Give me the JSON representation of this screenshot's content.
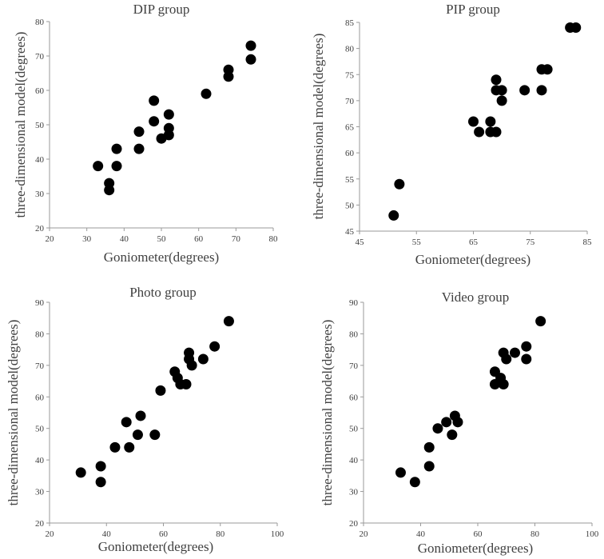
{
  "figure": {
    "layout": "2x2 grid of scatter plots"
  },
  "chart_data": [
    {
      "type": "scatter",
      "title": "DIP group",
      "xlabel": "Goniometer(degrees)",
      "ylabel": "three-dimensional model(degrees)",
      "xlim": [
        20,
        80
      ],
      "ylim": [
        20,
        80
      ],
      "xticks": [
        20,
        30,
        40,
        50,
        60,
        70,
        80
      ],
      "yticks": [
        20,
        30,
        40,
        50,
        60,
        70,
        80
      ],
      "marker_color": "#000000",
      "points": [
        [
          33,
          38
        ],
        [
          36,
          33
        ],
        [
          36,
          31
        ],
        [
          38,
          43
        ],
        [
          38,
          38
        ],
        [
          44,
          48
        ],
        [
          44,
          43
        ],
        [
          48,
          57
        ],
        [
          48,
          51
        ],
        [
          50,
          46
        ],
        [
          52,
          53
        ],
        [
          52,
          49
        ],
        [
          52,
          47
        ],
        [
          62,
          59
        ],
        [
          68,
          66
        ],
        [
          68,
          64
        ],
        [
          74,
          73
        ],
        [
          74,
          69
        ]
      ]
    },
    {
      "type": "scatter",
      "title": "PIP group",
      "xlabel": "Goniometer(degrees)",
      "ylabel": "three-dimensional model(degrees)",
      "xlim": [
        45,
        85
      ],
      "ylim": [
        45,
        85
      ],
      "xticks": [
        45,
        55,
        65,
        75,
        85
      ],
      "yticks": [
        45,
        50,
        55,
        60,
        65,
        70,
        75,
        80,
        85
      ],
      "marker_color": "#000000",
      "points": [
        [
          51,
          48
        ],
        [
          52,
          54
        ],
        [
          65,
          66
        ],
        [
          66,
          64
        ],
        [
          68,
          66
        ],
        [
          68,
          64
        ],
        [
          69,
          64
        ],
        [
          69,
          74
        ],
        [
          69,
          72
        ],
        [
          70,
          72
        ],
        [
          70,
          70
        ],
        [
          74,
          72
        ],
        [
          77,
          76
        ],
        [
          78,
          76
        ],
        [
          77,
          72
        ],
        [
          82,
          84
        ],
        [
          83,
          84
        ]
      ]
    },
    {
      "type": "scatter",
      "title": "Photo group",
      "xlabel": "Goniometer(degrees)",
      "ylabel": "three-dimensional model(degrees)",
      "xlim": [
        20,
        100
      ],
      "ylim": [
        20,
        90
      ],
      "xticks": [
        20,
        40,
        60,
        80,
        100
      ],
      "yticks": [
        20,
        30,
        40,
        50,
        60,
        70,
        80,
        90
      ],
      "marker_color": "#000000",
      "points": [
        [
          31,
          36
        ],
        [
          38,
          38
        ],
        [
          38,
          33
        ],
        [
          43,
          44
        ],
        [
          47,
          52
        ],
        [
          48,
          44
        ],
        [
          51,
          48
        ],
        [
          52,
          54
        ],
        [
          57,
          48
        ],
        [
          59,
          62
        ],
        [
          64,
          68
        ],
        [
          65,
          66
        ],
        [
          66,
          64
        ],
        [
          68,
          64
        ],
        [
          69,
          74
        ],
        [
          69,
          72
        ],
        [
          70,
          70
        ],
        [
          74,
          72
        ],
        [
          78,
          76
        ],
        [
          83,
          84
        ]
      ]
    },
    {
      "type": "scatter",
      "title": "Video group",
      "xlabel": "Goniometer(degrees)",
      "ylabel": "three-dimensional model(degrees)",
      "xlim": [
        20,
        100
      ],
      "ylim": [
        20,
        90
      ],
      "xticks": [
        20,
        40,
        60,
        80,
        100
      ],
      "yticks": [
        20,
        30,
        40,
        50,
        60,
        70,
        80,
        90
      ],
      "marker_color": "#000000",
      "points": [
        [
          33,
          36
        ],
        [
          38,
          33
        ],
        [
          43,
          44
        ],
        [
          43,
          38
        ],
        [
          46,
          50
        ],
        [
          49,
          52
        ],
        [
          51,
          48
        ],
        [
          52,
          54
        ],
        [
          53,
          52
        ],
        [
          66,
          68
        ],
        [
          66,
          64
        ],
        [
          68,
          66
        ],
        [
          69,
          74
        ],
        [
          69,
          64
        ],
        [
          70,
          72
        ],
        [
          73,
          74
        ],
        [
          77,
          76
        ],
        [
          77,
          72
        ],
        [
          82,
          84
        ]
      ]
    }
  ]
}
